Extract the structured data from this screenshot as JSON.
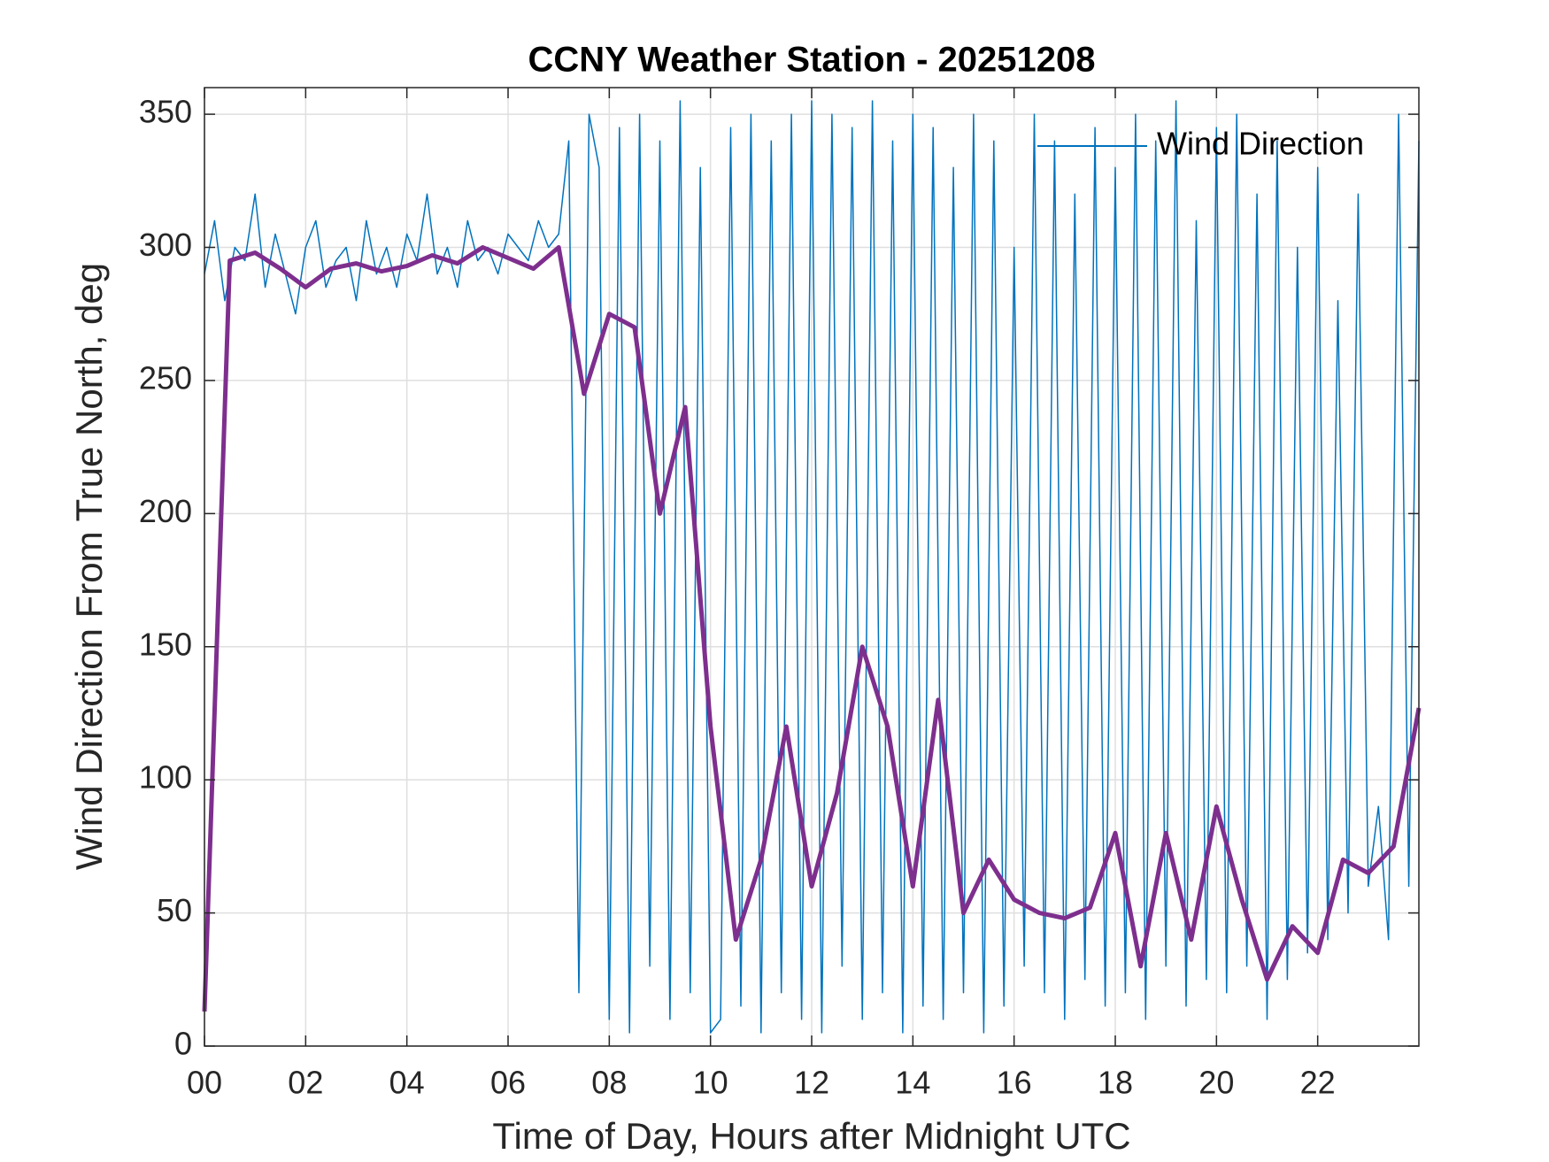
{
  "chart_data": {
    "type": "line",
    "title": "CCNY Weather Station - 20251208",
    "x_label": "Time of Day, Hours after Midnight UTC",
    "y_label": "Wind Direction From True North, deg",
    "xlim": [
      0,
      24
    ],
    "ylim": [
      0,
      360
    ],
    "xticks": [
      {
        "value": 0,
        "label": "00"
      },
      {
        "value": 2,
        "label": "02"
      },
      {
        "value": 4,
        "label": "04"
      },
      {
        "value": 6,
        "label": "06"
      },
      {
        "value": 8,
        "label": "08"
      },
      {
        "value": 10,
        "label": "10"
      },
      {
        "value": 12,
        "label": "12"
      },
      {
        "value": 14,
        "label": "14"
      },
      {
        "value": 16,
        "label": "16"
      },
      {
        "value": 18,
        "label": "18"
      },
      {
        "value": 20,
        "label": "20"
      },
      {
        "value": 22,
        "label": "22"
      }
    ],
    "yticks": [
      0,
      50,
      100,
      150,
      200,
      250,
      300,
      350
    ],
    "grid": true,
    "legend": "upper right",
    "series": [
      {
        "name": "Wind Direction",
        "color": "#0072bd",
        "x": [
          0,
          0.2,
          0.4,
          0.6,
          0.8,
          1,
          1.2,
          1.4,
          1.6,
          1.8,
          2,
          2.2,
          2.4,
          2.6,
          2.8,
          3,
          3.2,
          3.4,
          3.6,
          3.8,
          4,
          4.2,
          4.4,
          4.6,
          4.8,
          5,
          5.2,
          5.4,
          5.6,
          5.8,
          6,
          6.2,
          6.4,
          6.6,
          6.8,
          7,
          7.2,
          7.4,
          7.6,
          7.8,
          8,
          8.2,
          8.4,
          8.6,
          8.8,
          9,
          9.2,
          9.4,
          9.6,
          9.8,
          10,
          10.2,
          10.4,
          10.6,
          10.8,
          11,
          11.2,
          11.4,
          11.6,
          11.8,
          12,
          12.2,
          12.4,
          12.6,
          12.8,
          13,
          13.2,
          13.4,
          13.6,
          13.8,
          14,
          14.2,
          14.4,
          14.6,
          14.8,
          15,
          15.2,
          15.4,
          15.6,
          15.8,
          16,
          16.2,
          16.4,
          16.6,
          16.8,
          17,
          17.2,
          17.4,
          17.6,
          17.8,
          18,
          18.2,
          18.4,
          18.6,
          18.8,
          19,
          19.2,
          19.4,
          19.6,
          19.8,
          20,
          20.2,
          20.4,
          20.6,
          20.8,
          21,
          21.2,
          21.4,
          21.6,
          21.8,
          22,
          22.2,
          22.4,
          22.6,
          22.8,
          23,
          23.2,
          23.4,
          23.6,
          23.8,
          24
        ],
        "values": [
          290,
          310,
          280,
          300,
          295,
          320,
          285,
          305,
          290,
          275,
          300,
          310,
          285,
          295,
          300,
          280,
          310,
          290,
          300,
          285,
          305,
          295,
          320,
          290,
          300,
          285,
          310,
          295,
          300,
          290,
          305,
          300,
          295,
          310,
          300,
          305,
          340,
          20,
          350,
          330,
          10,
          345,
          5,
          350,
          30,
          340,
          10,
          355,
          20,
          330,
          5,
          10,
          345,
          15,
          350,
          5,
          340,
          20,
          350,
          10,
          355,
          5,
          350,
          30,
          345,
          10,
          355,
          20,
          340,
          5,
          350,
          15,
          345,
          10,
          330,
          20,
          350,
          5,
          340,
          15,
          300,
          30,
          350,
          20,
          340,
          10,
          320,
          25,
          345,
          15,
          330,
          20,
          350,
          10,
          340,
          30,
          355,
          15,
          310,
          25,
          345,
          20,
          350,
          30,
          320,
          10,
          340,
          25,
          300,
          35,
          330,
          40,
          280,
          50,
          320,
          60,
          90,
          40,
          350,
          60,
          340
        ]
      },
      {
        "color": "#7e2f8e",
        "x": [
          0,
          0.5,
          1,
          1.5,
          2,
          2.5,
          3,
          3.5,
          4,
          4.5,
          5,
          5.5,
          6,
          6.5,
          7,
          7.5,
          8,
          8.5,
          9,
          9.5,
          10,
          10.5,
          11,
          11.5,
          12,
          12.5,
          13,
          13.5,
          14,
          14.5,
          15,
          15.5,
          16,
          16.5,
          17,
          17.5,
          18,
          18.5,
          19,
          19.5,
          20,
          20.5,
          21,
          21.5,
          22,
          22.5,
          23,
          23.5,
          24
        ],
        "values": [
          13,
          295,
          298,
          292,
          285,
          292,
          294,
          291,
          293,
          297,
          294,
          300,
          296,
          292,
          300,
          245,
          275,
          270,
          200,
          240,
          120,
          40,
          70,
          120,
          60,
          95,
          150,
          120,
          60,
          130,
          50,
          70,
          55,
          50,
          48,
          52,
          80,
          30,
          80,
          40,
          90,
          55,
          25,
          45,
          35,
          70,
          65,
          75,
          127
        ]
      }
    ]
  }
}
